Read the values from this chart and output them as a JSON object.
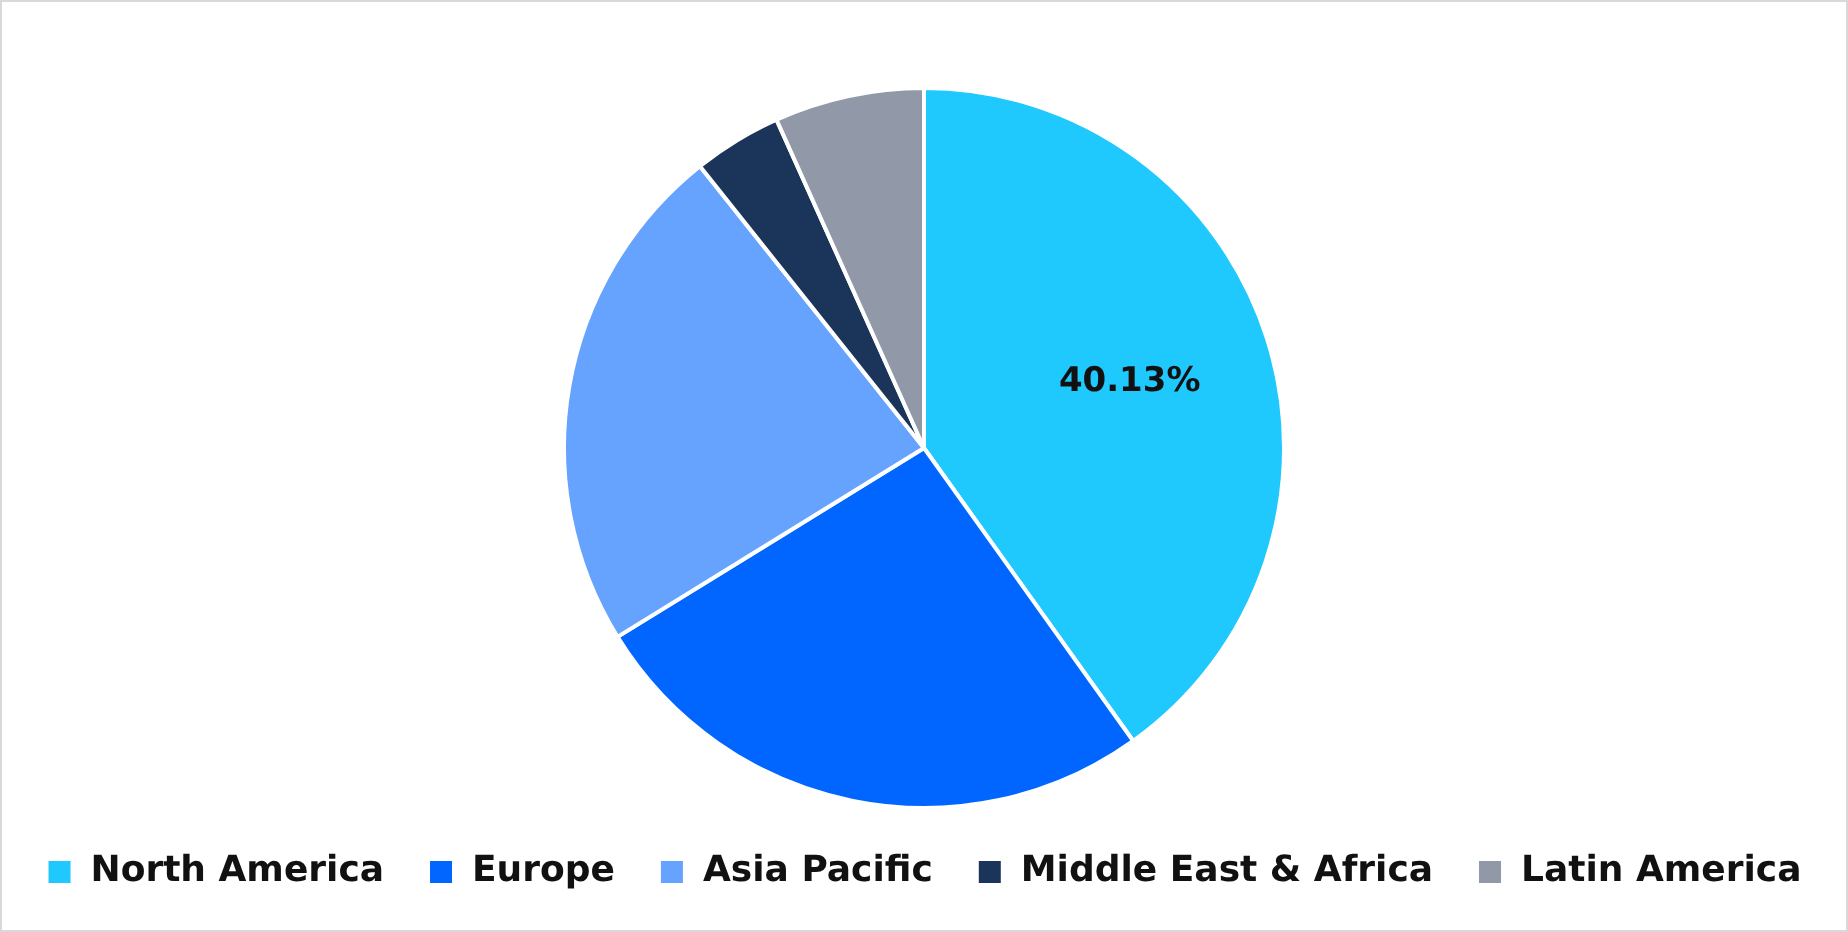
{
  "chart_data": {
    "type": "pie",
    "categories": [
      "North America",
      "Europe",
      "Asia Pacific",
      "Middle East & Africa",
      "Latin America"
    ],
    "values": [
      40.13,
      26.08,
      23.1,
      3.97,
      6.72
    ],
    "colors": [
      "#1fc8fd",
      "#0066ff",
      "#66a3ff",
      "#1b3459",
      "#9199a8"
    ],
    "value_labels": [
      "40.13%",
      null,
      null,
      null,
      null
    ],
    "legend": "bottom"
  }
}
